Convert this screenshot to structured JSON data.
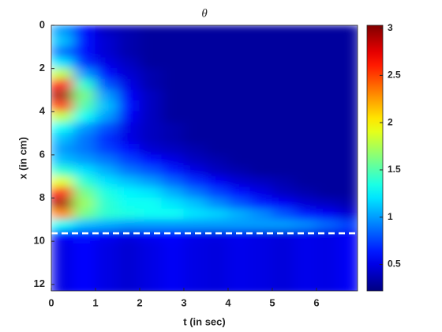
{
  "chart_data": {
    "type": "heatmap",
    "title": "θ",
    "xlabel": "t (in sec)",
    "ylabel": "x (in cm)",
    "xlim": [
      0,
      6.93
    ],
    "ylim": [
      0,
      12.3
    ],
    "y_reversed": true,
    "xticks": [
      0,
      1,
      2,
      3,
      4,
      5,
      6
    ],
    "yticks": [
      0,
      2,
      4,
      6,
      8,
      10,
      12
    ],
    "clim": [
      0.22,
      3.03
    ],
    "colorbar_ticks": [
      0.5,
      1,
      1.5,
      2,
      2.5,
      3
    ],
    "colormap": "jet",
    "dashed_line_x": 9.63,
    "dashed_line_color": "#ffffff",
    "t": [
      0.25,
      0.75,
      1.25,
      1.75,
      2.25,
      2.75,
      3.25,
      3.75,
      4.25,
      4.75,
      5.25,
      5.75,
      6.25,
      6.75
    ],
    "x": [
      0.25,
      0.75,
      1.25,
      1.75,
      2.25,
      2.75,
      3.25,
      3.75,
      4.25,
      4.75,
      5.25,
      5.75,
      6.25,
      6.75,
      7.25,
      7.75,
      8.25,
      8.75,
      9.25,
      9.75,
      10.25,
      10.75,
      11.25,
      11.75,
      12.25
    ],
    "z": [
      [
        1.0,
        0.6,
        0.4,
        0.35,
        0.3,
        0.3,
        0.3,
        0.3,
        0.3,
        0.3,
        0.3,
        0.3,
        0.3,
        0.3
      ],
      [
        1.1,
        0.6,
        0.45,
        0.35,
        0.3,
        0.3,
        0.3,
        0.3,
        0.3,
        0.3,
        0.3,
        0.3,
        0.3,
        0.3
      ],
      [
        0.9,
        0.6,
        0.45,
        0.35,
        0.3,
        0.3,
        0.3,
        0.3,
        0.3,
        0.3,
        0.3,
        0.3,
        0.3,
        0.3
      ],
      [
        1.2,
        0.7,
        0.5,
        0.4,
        0.3,
        0.3,
        0.3,
        0.3,
        0.3,
        0.3,
        0.3,
        0.3,
        0.3,
        0.3
      ],
      [
        1.8,
        1.0,
        0.6,
        0.45,
        0.35,
        0.3,
        0.3,
        0.3,
        0.3,
        0.3,
        0.3,
        0.3,
        0.3,
        0.3
      ],
      [
        2.6,
        1.4,
        0.8,
        0.5,
        0.35,
        0.3,
        0.3,
        0.3,
        0.3,
        0.3,
        0.3,
        0.3,
        0.3,
        0.3
      ],
      [
        2.9,
        1.6,
        1.0,
        0.55,
        0.4,
        0.3,
        0.3,
        0.3,
        0.3,
        0.3,
        0.3,
        0.3,
        0.3,
        0.3
      ],
      [
        2.5,
        1.5,
        1.1,
        0.6,
        0.4,
        0.3,
        0.3,
        0.3,
        0.3,
        0.3,
        0.3,
        0.3,
        0.3,
        0.3
      ],
      [
        1.8,
        1.3,
        1.0,
        0.55,
        0.4,
        0.3,
        0.3,
        0.3,
        0.3,
        0.3,
        0.3,
        0.3,
        0.3,
        0.3
      ],
      [
        1.3,
        1.0,
        0.8,
        0.5,
        0.4,
        0.35,
        0.3,
        0.3,
        0.3,
        0.3,
        0.3,
        0.3,
        0.3,
        0.3
      ],
      [
        1.1,
        0.9,
        0.7,
        0.5,
        0.4,
        0.35,
        0.3,
        0.3,
        0.3,
        0.3,
        0.3,
        0.3,
        0.3,
        0.3
      ],
      [
        1.0,
        0.9,
        0.75,
        0.6,
        0.45,
        0.4,
        0.35,
        0.3,
        0.3,
        0.3,
        0.3,
        0.3,
        0.3,
        0.3
      ],
      [
        1.1,
        1.0,
        0.9,
        0.75,
        0.6,
        0.5,
        0.4,
        0.35,
        0.3,
        0.3,
        0.3,
        0.3,
        0.3,
        0.3
      ],
      [
        1.4,
        1.2,
        1.05,
        0.9,
        0.8,
        0.65,
        0.5,
        0.4,
        0.35,
        0.3,
        0.3,
        0.3,
        0.3,
        0.3
      ],
      [
        1.9,
        1.4,
        1.2,
        1.1,
        1.0,
        0.85,
        0.7,
        0.55,
        0.45,
        0.4,
        0.35,
        0.3,
        0.3,
        0.3
      ],
      [
        2.6,
        1.6,
        1.35,
        1.25,
        1.2,
        1.05,
        0.9,
        0.75,
        0.6,
        0.5,
        0.4,
        0.35,
        0.3,
        0.3
      ],
      [
        2.9,
        1.7,
        1.4,
        1.3,
        1.3,
        1.2,
        1.1,
        0.95,
        0.8,
        0.65,
        0.55,
        0.45,
        0.4,
        0.35
      ],
      [
        2.3,
        1.6,
        1.4,
        1.35,
        1.3,
        1.3,
        1.2,
        1.15,
        1.05,
        0.95,
        0.8,
        0.65,
        0.55,
        0.45
      ],
      [
        1.3,
        1.1,
        1.05,
        1.0,
        1.0,
        1.0,
        1.0,
        1.0,
        1.0,
        1.0,
        1.0,
        0.95,
        0.85,
        0.75
      ],
      [
        0.6,
        0.62,
        0.55,
        0.5,
        0.55,
        0.58,
        0.52,
        0.5,
        0.53,
        0.5,
        0.48,
        0.52,
        0.5,
        0.55
      ],
      [
        0.5,
        0.58,
        0.5,
        0.45,
        0.5,
        0.55,
        0.5,
        0.48,
        0.52,
        0.5,
        0.47,
        0.52,
        0.5,
        0.55
      ],
      [
        0.5,
        0.58,
        0.5,
        0.45,
        0.5,
        0.55,
        0.5,
        0.48,
        0.52,
        0.5,
        0.47,
        0.52,
        0.5,
        0.55
      ],
      [
        0.5,
        0.58,
        0.5,
        0.45,
        0.5,
        0.55,
        0.5,
        0.48,
        0.52,
        0.5,
        0.47,
        0.52,
        0.5,
        0.55
      ],
      [
        0.5,
        0.58,
        0.5,
        0.45,
        0.5,
        0.55,
        0.5,
        0.48,
        0.52,
        0.5,
        0.47,
        0.52,
        0.5,
        0.55
      ],
      [
        0.5,
        0.58,
        0.5,
        0.45,
        0.5,
        0.55,
        0.5,
        0.48,
        0.52,
        0.5,
        0.47,
        0.52,
        0.5,
        0.55
      ]
    ]
  }
}
